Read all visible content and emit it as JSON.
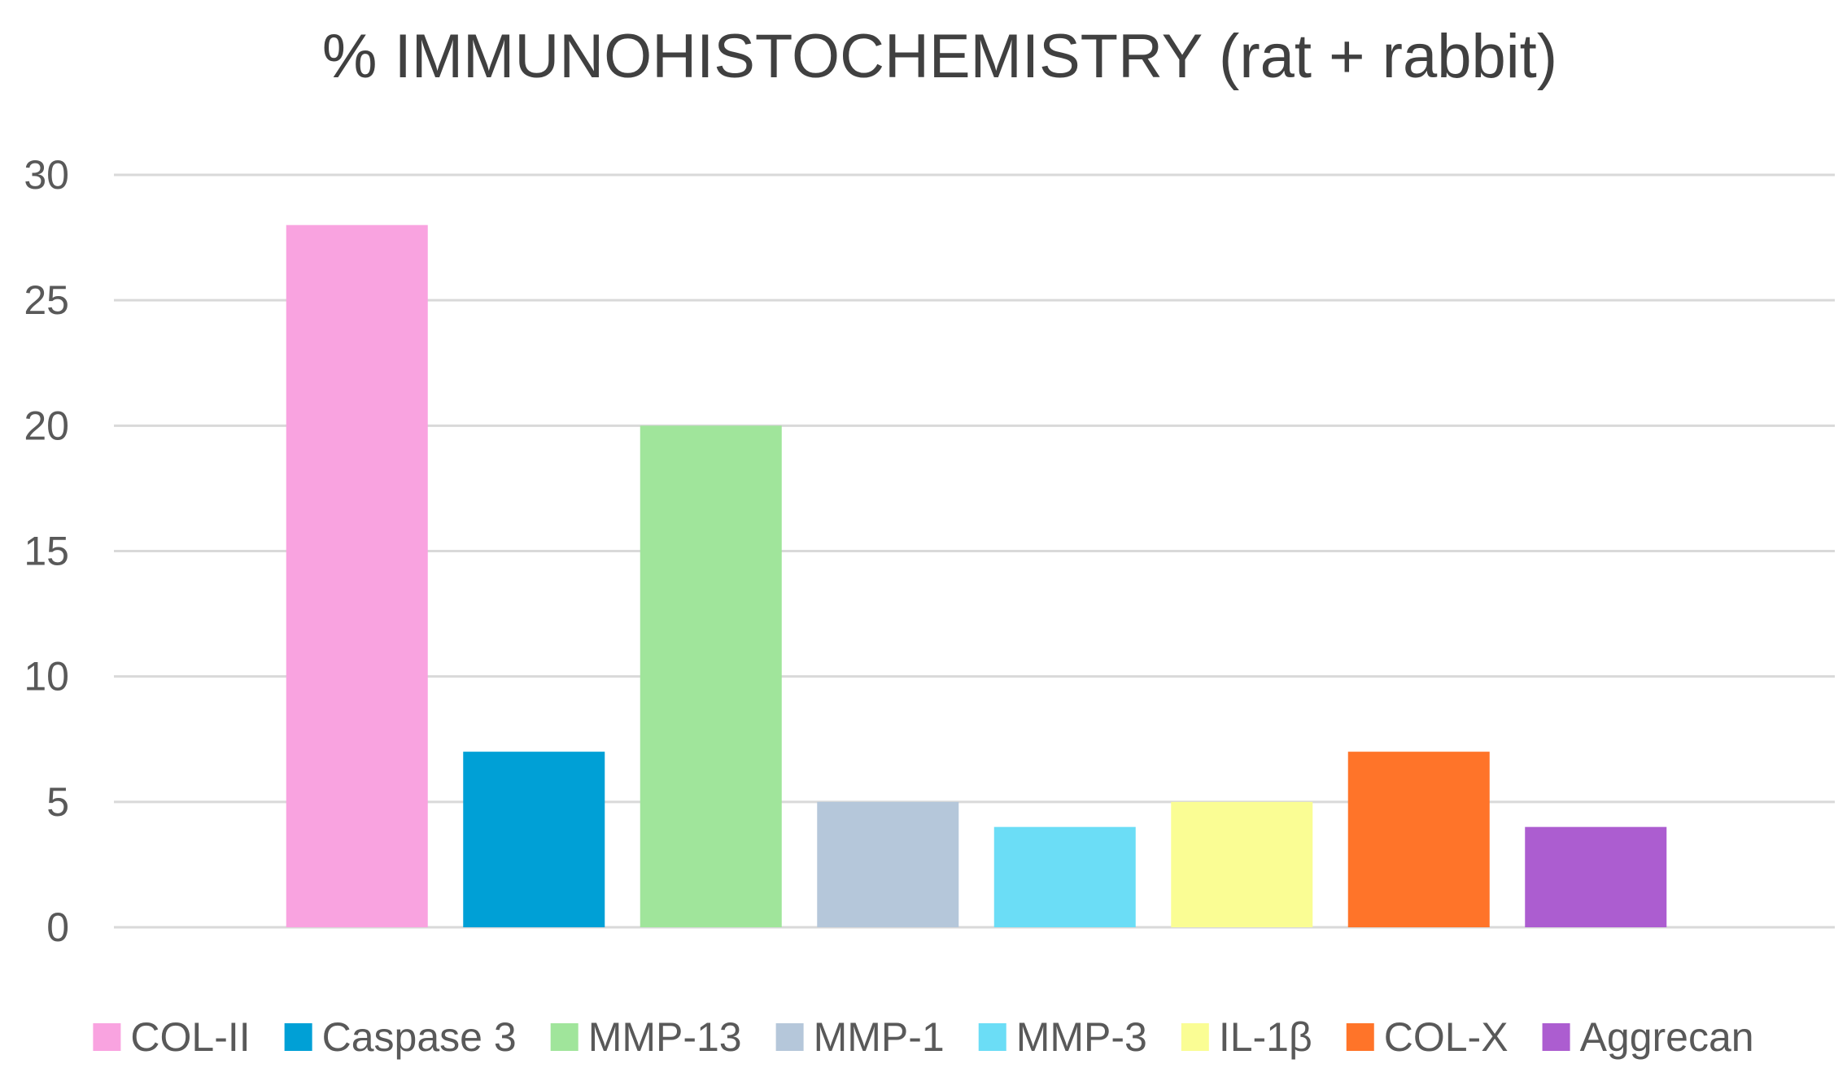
{
  "chart_data": {
    "type": "bar",
    "title": "% IMMUNOHISTOCHEMISTRY (rat + rabbit)",
    "xlabel": "",
    "ylabel": "",
    "ylim": [
      0,
      30
    ],
    "yticks": [
      "0",
      "5",
      "10",
      "15",
      "20",
      "25",
      "30"
    ],
    "grid": true,
    "legend_position": "bottom",
    "series": [
      {
        "name": "COL-II",
        "value": 28,
        "color": "#F9A3E0"
      },
      {
        "name": "Caspase 3",
        "value": 7,
        "color": "#00A0D6"
      },
      {
        "name": "MMP-13",
        "value": 20,
        "color": "#A0E59B"
      },
      {
        "name": "MMP-1",
        "value": 5,
        "color": "#B5C7DA"
      },
      {
        "name": "MMP-3",
        "value": 4,
        "color": "#6BDDF6"
      },
      {
        "name": "IL-1β",
        "value": 5,
        "color": "#FAFD94"
      },
      {
        "name": "COL-X",
        "value": 7,
        "color": "#FF7429"
      },
      {
        "name": "Aggrecan",
        "value": 4,
        "color": "#AC5DD0"
      }
    ]
  }
}
